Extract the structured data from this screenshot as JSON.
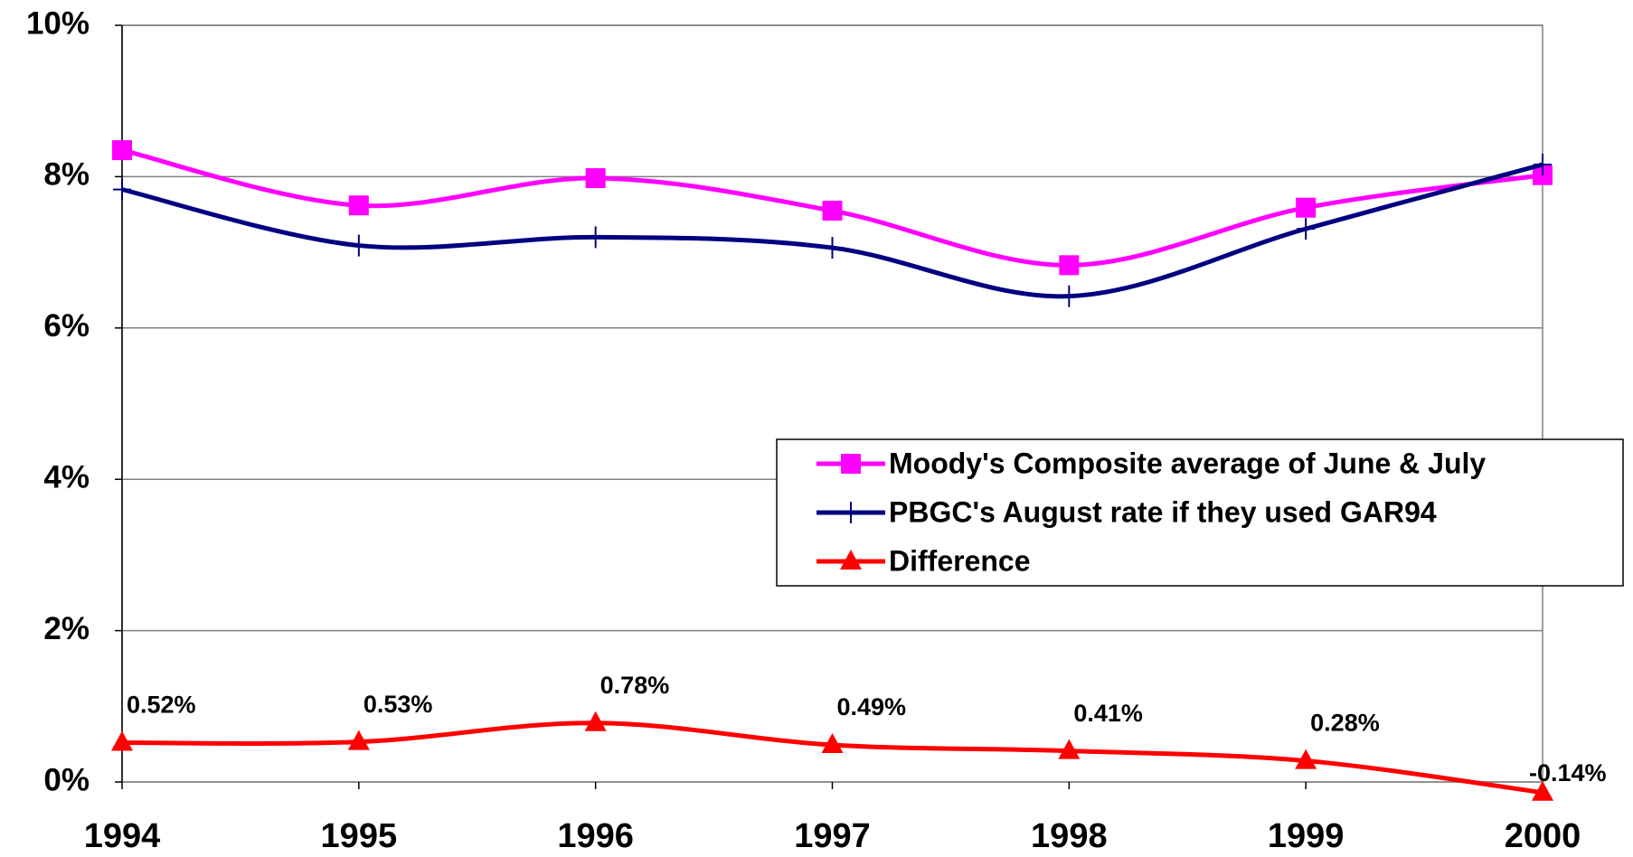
{
  "chart_data": {
    "type": "line",
    "x": [
      1994,
      1995,
      1996,
      1997,
      1998,
      1999,
      2000
    ],
    "xlim": [
      1994,
      2000
    ],
    "xticks": [
      1994,
      1995,
      1996,
      1997,
      1998,
      1999,
      2000
    ],
    "ylim": [
      0,
      10
    ],
    "yticks": [
      {
        "value": 0,
        "label": "0%"
      },
      {
        "value": 2,
        "label": "2%"
      },
      {
        "value": 4,
        "label": "4%"
      },
      {
        "value": 6,
        "label": "6%"
      },
      {
        "value": 8,
        "label": "8%"
      },
      {
        "value": 10,
        "label": "10%"
      }
    ],
    "grid": true,
    "legend": "right",
    "series": [
      {
        "name": "Moody's Composite average of June & July",
        "color": "#ff00ff",
        "marker": "square",
        "values": [
          8.35,
          7.62,
          7.98,
          7.55,
          6.83,
          7.59,
          8.02
        ]
      },
      {
        "name": "PBGC's August rate if they used GAR94",
        "color": "#000080",
        "marker": "plus",
        "values": [
          7.83,
          7.09,
          7.2,
          7.06,
          6.42,
          7.31,
          8.16
        ]
      },
      {
        "name": "Difference",
        "color": "#ff0000",
        "marker": "triangle",
        "values": [
          0.52,
          0.53,
          0.78,
          0.49,
          0.41,
          0.28,
          -0.14
        ],
        "value_labels": [
          "0.52%",
          "0.53%",
          "0.78%",
          "0.49%",
          "0.41%",
          "0.28%",
          "-0.14%"
        ]
      }
    ]
  }
}
